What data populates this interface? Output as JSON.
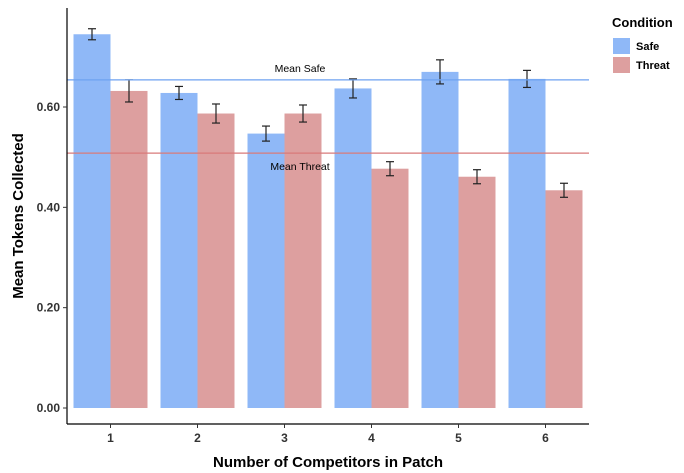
{
  "chart_data": {
    "type": "bar",
    "xlabel": "Number of Competitors in Patch",
    "ylabel": "Mean Tokens Collected",
    "categories": [
      "1",
      "2",
      "3",
      "4",
      "5",
      "6"
    ],
    "ylim": [
      0,
      0.78
    ],
    "yticks": [
      0.0,
      0.2,
      0.4,
      0.6
    ],
    "ytick_labels": [
      "0.00",
      "0.20",
      "0.40",
      "0.60"
    ],
    "grid": false,
    "legend": {
      "title": "Condition",
      "position": "top-right"
    },
    "series": [
      {
        "name": "Safe",
        "color": "#8fb8f7",
        "values": [
          0.745,
          0.628,
          0.547,
          0.637,
          0.67,
          0.656
        ],
        "error": [
          0.011,
          0.013,
          0.015,
          0.019,
          0.024,
          0.017
        ]
      },
      {
        "name": "Threat",
        "color": "#dd9f9f",
        "values": [
          0.632,
          0.587,
          0.587,
          0.477,
          0.461,
          0.434
        ],
        "error": [
          0.022,
          0.019,
          0.017,
          0.014,
          0.014,
          0.014
        ]
      }
    ],
    "reference_lines": [
      {
        "label": "Mean Safe",
        "value": 0.654,
        "color": "#6ea2f0"
      },
      {
        "label": "Mean Threat",
        "value": 0.508,
        "color": "#d97a7a"
      }
    ]
  }
}
